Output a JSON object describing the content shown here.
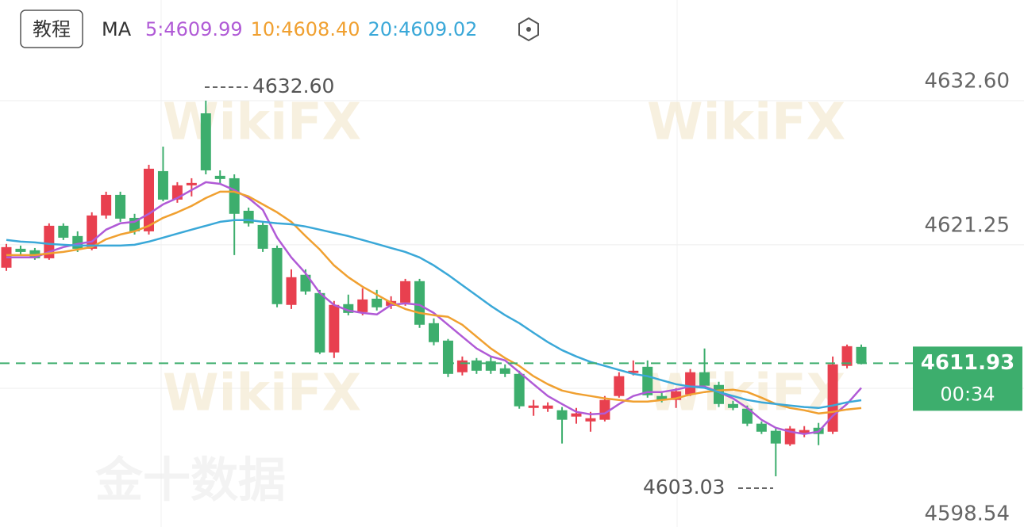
{
  "chart_data": {
    "type": "candlestick",
    "button": "教程",
    "ma_title": "MA",
    "ylim": [
      4598.54,
      4640.52
    ],
    "yticks": [
      {
        "value": 4632.6,
        "label": "4632.60"
      },
      4621.25,
      4598.54
    ],
    "grid": true,
    "up_color": "#e8404f",
    "down_color": "#3dae6d",
    "current_price": 4611.93,
    "countdown": "00:34",
    "annotations": [
      {
        "text": "4632.60"
      },
      {
        "text": "4603.03"
      }
    ],
    "watermarks": [
      "WikiFX",
      "金十数据"
    ],
    "ohlc": [
      [
        4619.45,
        4621.32,
        4619.2,
        4621.07
      ],
      [
        4620.94,
        4621.19,
        4620.44,
        4620.69
      ],
      [
        4620.82,
        4621.0,
        4620.07,
        4620.19
      ],
      [
        4620.19,
        4622.94,
        4620.07,
        4622.75
      ],
      [
        4622.75,
        4622.94,
        4621.63,
        4621.81
      ],
      [
        4621.94,
        4622.31,
        4620.69,
        4620.94
      ],
      [
        4620.94,
        4623.81,
        4620.82,
        4623.56
      ],
      [
        4623.56,
        4625.43,
        4623.31,
        4625.18
      ],
      [
        4625.18,
        4625.43,
        4623.06,
        4623.31
      ],
      [
        4623.37,
        4623.69,
        4622.06,
        4622.31
      ],
      [
        4622.31,
        4627.55,
        4622.06,
        4627.24
      ],
      [
        4627.05,
        4628.98,
        4624.68,
        4624.81
      ],
      [
        4624.81,
        4626.18,
        4624.56,
        4625.93
      ],
      [
        4625.93,
        4626.49,
        4625.06,
        4626.12
      ],
      [
        4631.6,
        4632.6,
        4626.8,
        4627.11
      ],
      [
        4626.68,
        4627.11,
        4626.05,
        4626.43
      ],
      [
        4626.49,
        4626.8,
        4620.44,
        4623.69
      ],
      [
        4623.93,
        4624.18,
        4622.69,
        4622.94
      ],
      [
        4622.81,
        4623.06,
        4620.69,
        4620.94
      ],
      [
        4621.0,
        4621.19,
        4616.33,
        4616.58
      ],
      [
        4616.52,
        4619.32,
        4616.2,
        4618.7
      ],
      [
        4618.89,
        4619.32,
        4617.33,
        4617.58
      ],
      [
        4617.45,
        4617.7,
        4612.65,
        4612.78
      ],
      [
        4612.78,
        4616.83,
        4612.34,
        4616.52
      ],
      [
        4616.58,
        4617.33,
        4615.7,
        4615.89
      ],
      [
        4615.95,
        4617.83,
        4615.7,
        4616.95
      ],
      [
        4617.01,
        4617.7,
        4616.08,
        4616.33
      ],
      [
        4616.45,
        4617.2,
        4616.2,
        4616.83
      ],
      [
        4616.7,
        4618.57,
        4616.45,
        4618.39
      ],
      [
        4618.39,
        4618.57,
        4614.71,
        4614.96
      ],
      [
        4615.08,
        4615.46,
        4613.34,
        4613.59
      ],
      [
        4613.71,
        4613.84,
        4610.84,
        4611.09
      ],
      [
        4611.22,
        4612.46,
        4610.97,
        4612.15
      ],
      [
        4612.15,
        4612.34,
        4611.09,
        4611.34
      ],
      [
        4612.09,
        4612.46,
        4611.09,
        4611.34
      ],
      [
        4611.53,
        4611.84,
        4610.84,
        4611.09
      ],
      [
        4611.09,
        4611.34,
        4608.35,
        4608.54
      ],
      [
        4608.41,
        4609.04,
        4607.79,
        4608.6
      ],
      [
        4608.35,
        4608.85,
        4608.1,
        4608.6
      ],
      [
        4608.23,
        4608.48,
        4605.61,
        4607.48
      ],
      [
        4607.73,
        4608.41,
        4607.17,
        4607.98
      ],
      [
        4607.35,
        4608.1,
        4606.54,
        4607.6
      ],
      [
        4607.48,
        4609.35,
        4607.35,
        4609.04
      ],
      [
        4609.35,
        4611.22,
        4609.22,
        4610.91
      ],
      [
        4611.16,
        4612.15,
        4610.97,
        4611.34
      ],
      [
        4611.65,
        4612.15,
        4609.22,
        4609.41
      ],
      [
        4609.35,
        4609.6,
        4608.85,
        4609.04
      ],
      [
        4609.04,
        4609.97,
        4608.41,
        4609.72
      ],
      [
        4609.47,
        4611.47,
        4609.35,
        4611.22
      ],
      [
        4611.22,
        4613.09,
        4609.97,
        4610.16
      ],
      [
        4610.22,
        4610.47,
        4608.48,
        4608.72
      ],
      [
        4608.72,
        4608.97,
        4608.23,
        4608.41
      ],
      [
        4608.35,
        4608.6,
        4606.98,
        4607.17
      ],
      [
        4607.17,
        4607.35,
        4606.36,
        4606.54
      ],
      [
        4606.61,
        4606.85,
        4603.03,
        4605.61
      ],
      [
        4605.55,
        4606.98,
        4605.42,
        4606.79
      ],
      [
        4606.36,
        4606.98,
        4606.11,
        4606.67
      ],
      [
        4606.85,
        4607.23,
        4605.48,
        4606.36
      ],
      [
        4606.54,
        4612.46,
        4606.36,
        4611.84
      ],
      [
        4611.72,
        4613.4,
        4611.53,
        4613.27
      ],
      [
        4613.21,
        4613.4,
        4611.84,
        4611.93
      ]
    ],
    "series": [
      {
        "name": "5:4609.99",
        "color": "#b05ad6",
        "values": [
          4620.26,
          4620.26,
          4620.26,
          4620.69,
          4621.07,
          4621.32,
          4621.5,
          4622.44,
          4622.94,
          4623.06,
          4623.69,
          4624.43,
          4624.93,
          4625.56,
          4626.18,
          4626.05,
          4625.56,
          4624.93,
          4624.0,
          4621.81,
          4620.26,
          4619.01,
          4617.45,
          4616.52,
          4616.08,
          4615.89,
          4615.77,
          4616.52,
          4616.64,
          4616.52,
          4615.89,
          4614.96,
          4614.02,
          4613.09,
          4612.46,
          4612.15,
          4611.22,
          4610.28,
          4609.35,
          4608.72,
          4608.1,
          4607.91,
          4607.98,
          4608.72,
          4609.35,
          4609.66,
          4609.66,
          4609.85,
          4610.1,
          4610.1,
          4609.66,
          4609.16,
          4608.41,
          4607.48,
          4606.85,
          4606.54,
          4606.36,
          4606.54,
          4607.79,
          4608.72,
          4609.99
        ]
      },
      {
        "name": "10:4608.40",
        "color": "#f0a030",
        "values": [
          4620.44,
          4620.44,
          4620.44,
          4620.57,
          4620.69,
          4620.88,
          4621.07,
          4621.69,
          4622.06,
          4622.31,
          4622.75,
          4623.37,
          4623.81,
          4624.31,
          4624.93,
          4625.43,
          4625.43,
          4625.06,
          4624.43,
          4623.81,
          4623.06,
          4621.94,
          4620.88,
          4619.63,
          4618.7,
          4617.95,
          4617.33,
          4616.7,
          4616.2,
          4615.89,
          4615.71,
          4615.58,
          4614.96,
          4614.02,
          4613.09,
          4612.34,
          4611.72,
          4610.91,
          4610.28,
          4609.78,
          4609.53,
          4609.35,
          4609.16,
          4609.04,
          4608.91,
          4608.91,
          4609.04,
          4609.16,
          4609.47,
          4609.66,
          4609.78,
          4609.85,
          4609.66,
          4609.22,
          4608.72,
          4608.41,
          4608.23,
          4607.98,
          4608.1,
          4608.29,
          4608.4
        ]
      },
      {
        "name": "20:4609.02",
        "color": "#3aa8d8",
        "values": [
          4621.63,
          4621.5,
          4621.44,
          4621.32,
          4621.25,
          4621.19,
          4621.19,
          4621.19,
          4621.19,
          4621.25,
          4621.5,
          4621.81,
          4622.13,
          4622.44,
          4622.75,
          4623.06,
          4623.19,
          4623.19,
          4623.06,
          4622.94,
          4622.87,
          4622.69,
          4622.44,
          4622.19,
          4621.94,
          4621.63,
          4621.32,
          4621.0,
          4620.69,
          4620.26,
          4619.63,
          4618.89,
          4618.07,
          4617.26,
          4616.45,
          4615.71,
          4615.08,
          4614.33,
          4613.59,
          4612.96,
          4612.46,
          4612.03,
          4611.72,
          4611.4,
          4611.09,
          4610.91,
          4610.59,
          4610.28,
          4610.1,
          4609.99,
          4609.66,
          4609.35,
          4609.04,
          4608.85,
          4608.72,
          4608.6,
          4608.48,
          4608.41,
          4608.6,
          4608.85,
          4609.02
        ]
      }
    ]
  }
}
